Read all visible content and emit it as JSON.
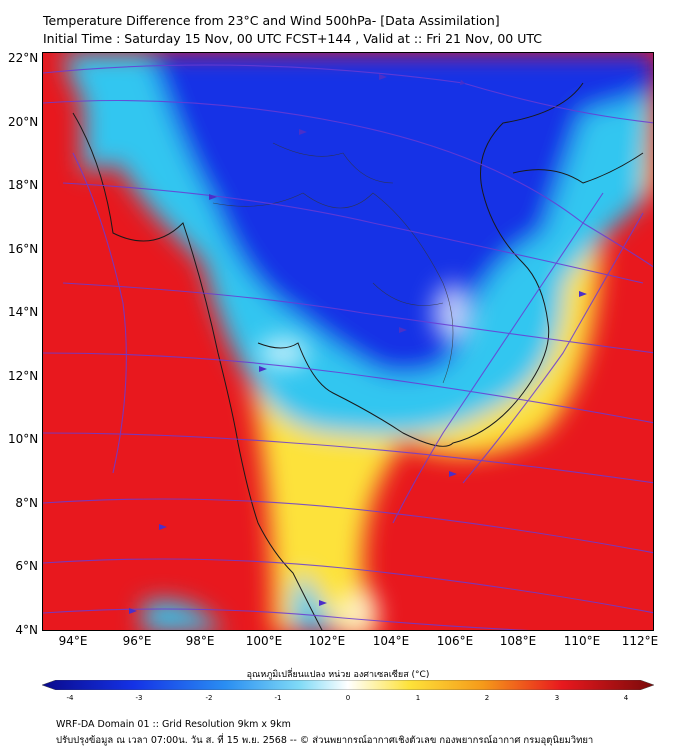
{
  "title": {
    "line1": "Temperature Difference from 23°C and Wind 500hPa- [Data Assimilation]",
    "line2": "Initial Time : Saturday 15 Nov, 00 UTC FCST+144 , Valid at ::  Fri 21 Nov, 00 UTC"
  },
  "map": {
    "lat_labels": [
      "22°N",
      "20°N",
      "18°N",
      "16°N",
      "14°N",
      "12°N",
      "10°N",
      "8°N",
      "6°N",
      "4°N"
    ],
    "lon_labels": [
      "94°E",
      "96°E",
      "98°E",
      "100°E",
      "102°E",
      "104°E",
      "106°E",
      "108°E",
      "110°E",
      "112°E"
    ],
    "colors": {
      "red": "#e8181e",
      "yellow": "#fde23a",
      "blue": "#1432e6",
      "cyan": "#33c6f0",
      "streamline": "#6a3bd4"
    }
  },
  "colorbar": {
    "title": "อุณหภูมิเปลี่ยนแปลง หน่วย องศาเซลเซียส (°C)",
    "ticks": [
      "-4",
      "-3",
      "-2",
      "-1",
      "0",
      "1",
      "2",
      "3",
      "4"
    ]
  },
  "footer": {
    "line1": "WRF-DA Domain 01 :: Grid Resolution 9km x 9km",
    "line2": "ปรับปรุงข้อมูล ณ เวลา 07:00น. วัน ส. ที่ 15 พ.ย. 2568 -- © ส่วนพยากรณ์อากาศเชิงตัวเลข กองพยากรณ์อากาศ กรมอุตุนิยมวิทยา"
  }
}
